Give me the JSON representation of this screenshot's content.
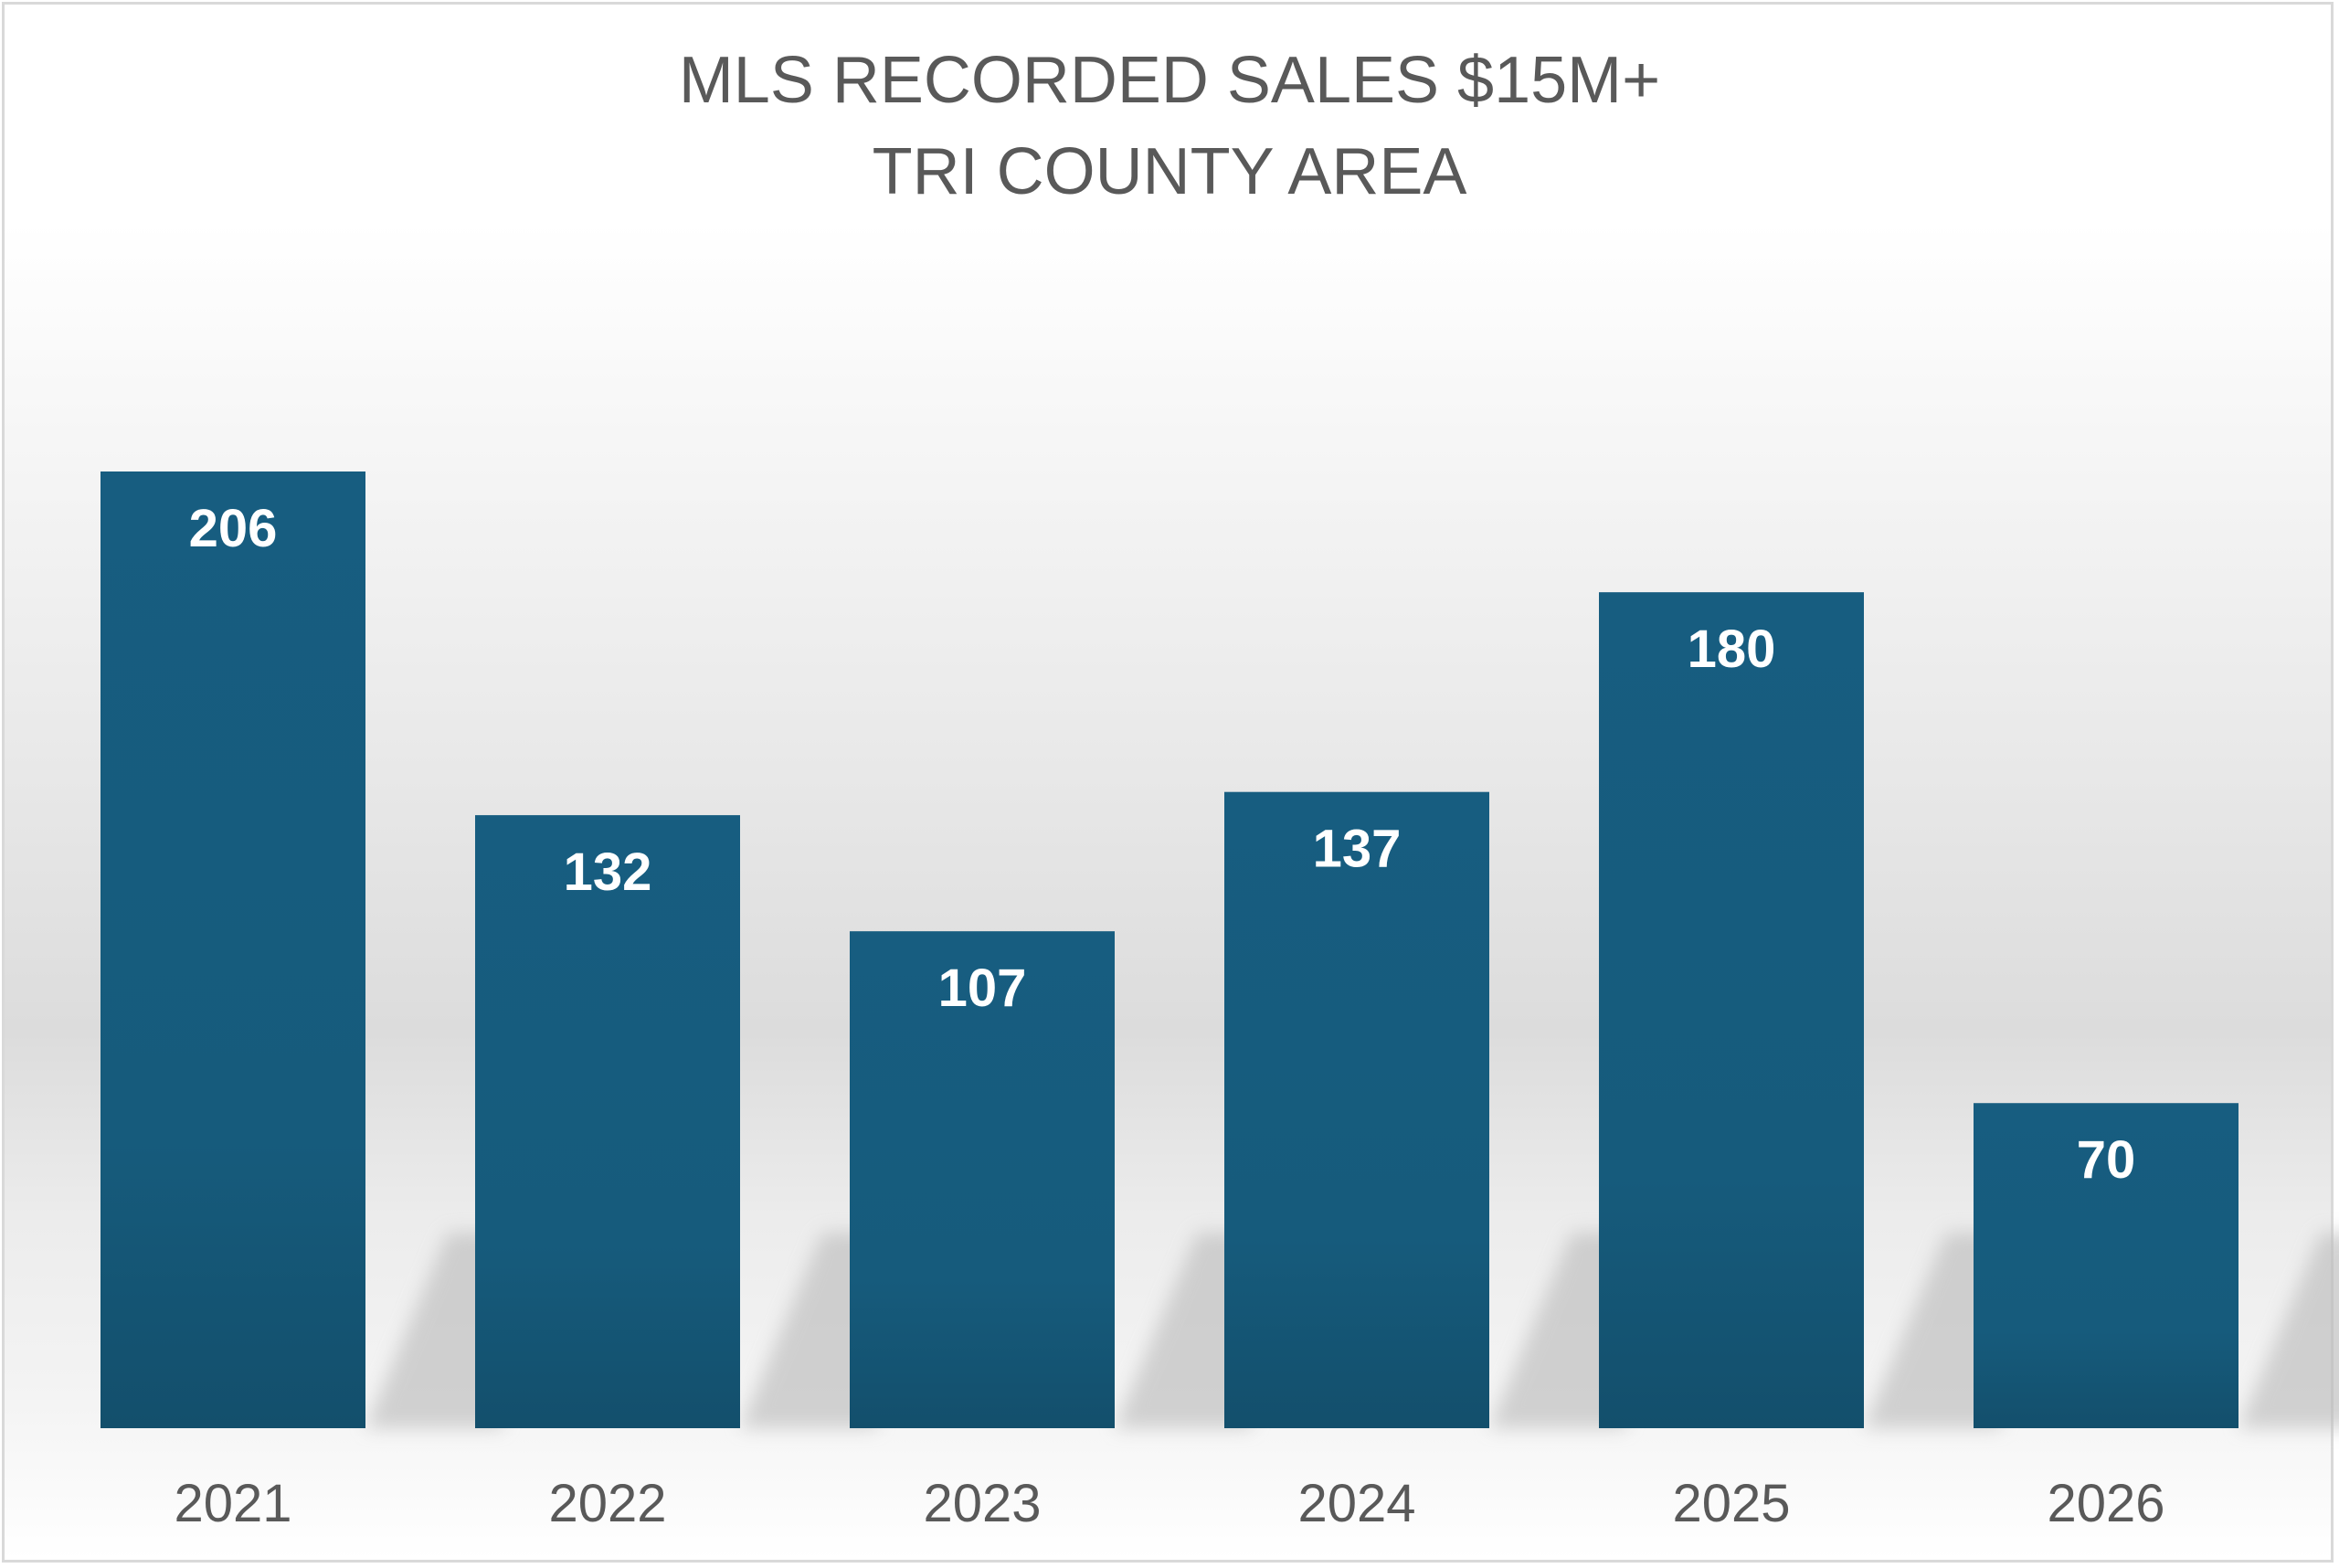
{
  "chart_data": {
    "type": "bar",
    "title_lines": [
      "MLS RECORDED SALES $15M+",
      "TRI COUNTY AREA"
    ],
    "categories": [
      "2021",
      "2022",
      "2023",
      "2024",
      "2025",
      "2026"
    ],
    "values": [
      206,
      132,
      107,
      137,
      180,
      70
    ],
    "xlabel": "",
    "ylabel": "",
    "ylim": [
      0,
      206
    ],
    "grid": false,
    "legend": "none",
    "bar_color": "#175d80",
    "label_color": "#ffffff",
    "tick_color": "#595959",
    "title_color": "#595959"
  }
}
